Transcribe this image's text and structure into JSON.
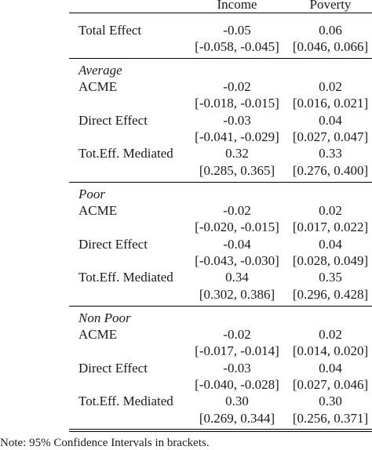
{
  "headers": {
    "col1": "Income",
    "col2": "Poverty"
  },
  "total": {
    "label": "Total Effect",
    "v1": "-0.05",
    "ci1": "[-0.058, -0.045]",
    "v2": "0.06",
    "ci2": "[0.046, 0.066]"
  },
  "groups": [
    {
      "name": "Average",
      "rows": [
        {
          "label": "ACME",
          "v1": "-0.02",
          "ci1": "[-0.018, -0.015]",
          "v2": "0.02",
          "ci2": "[0.016, 0.021]"
        },
        {
          "label": "Direct Effect",
          "v1": "-0.03",
          "ci1": "[-0.041, -0.029]",
          "v2": "0.04",
          "ci2": "[0.027, 0.047]"
        },
        {
          "label": "Tot.Eff. Mediated",
          "v1": "0.32",
          "ci1": "[0.285, 0.365]",
          "v2": "0.33",
          "ci2": "[0.276, 0.400]"
        }
      ]
    },
    {
      "name": "Poor",
      "rows": [
        {
          "label": "ACME",
          "v1": "-0.02",
          "ci1": "[-0.020, -0.015]",
          "v2": "0.02",
          "ci2": "[0.017, 0.022]"
        },
        {
          "label": "Direct Effect",
          "v1": "-0.04",
          "ci1": "[-0.043, -0.030]",
          "v2": "0.04",
          "ci2": "[0.028, 0.049]"
        },
        {
          "label": "Tot.Eff. Mediated",
          "v1": "0.34",
          "ci1": "[0.302, 0.386]",
          "v2": "0.35",
          "ci2": "[0.296, 0.428]"
        }
      ]
    },
    {
      "name": "Non Poor",
      "rows": [
        {
          "label": "ACME",
          "v1": "-0.02",
          "ci1": "[-0.017, -0.014]",
          "v2": "0.02",
          "ci2": "[0.014, 0.020]"
        },
        {
          "label": "Direct Effect",
          "v1": "-0.03",
          "ci1": "[-0.040, -0.028]",
          "v2": "0.04",
          "ci2": "[0.027, 0.046]"
        },
        {
          "label": "Tot.Eff. Mediated",
          "v1": "0.30",
          "ci1": "[0.269, 0.344]",
          "v2": "0.30",
          "ci2": "[0.256, 0.371]"
        }
      ]
    }
  ],
  "note": "Note: 95% Confidence Intervals in brackets."
}
